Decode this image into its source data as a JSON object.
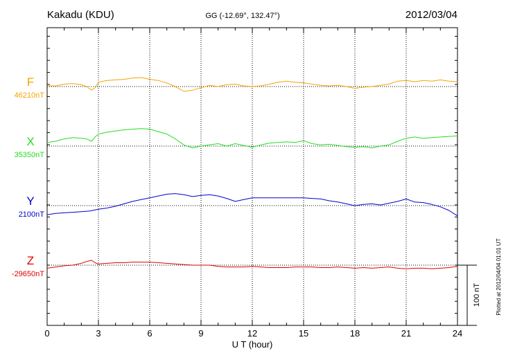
{
  "header": {
    "station": "Kakadu (KDU)",
    "coords": "GG (-12.69°, 132.47°)",
    "date": "2012/03/04"
  },
  "footer_note": "Plotted at 2012/04/04 01:01 UT",
  "chart_data": {
    "type": "line",
    "xlabel": "U T (hour)",
    "xlim": [
      0,
      24
    ],
    "x_ticks": [
      0,
      3,
      6,
      9,
      12,
      15,
      18,
      21,
      24
    ],
    "x_tick_labels": [
      "0",
      "3",
      "6",
      "9",
      "12",
      "15",
      "18",
      "21",
      "24"
    ],
    "y_unit": "nT",
    "scale_bar": {
      "label": "100 nT",
      "value": 100
    },
    "grid": true,
    "series": [
      {
        "name": "F",
        "baseline_label": "46210nT",
        "color": "#f5a300",
        "x": [
          0,
          0.5,
          1,
          1.5,
          2,
          2.3,
          2.6,
          2.8,
          3,
          3.5,
          4,
          4.5,
          5,
          5.5,
          6,
          6.5,
          7,
          7.5,
          8,
          8.5,
          9,
          9.5,
          10,
          10.5,
          11,
          11.5,
          12,
          12.5,
          13,
          13.5,
          14,
          14.5,
          15,
          15.5,
          16,
          16.5,
          17,
          17.5,
          18,
          18.5,
          19,
          19.5,
          20,
          20.5,
          21,
          21.5,
          22,
          22.5,
          23,
          23.5,
          24
        ],
        "y": [
          1,
          1,
          4,
          5,
          3,
          0,
          -6,
          -2,
          7,
          10,
          11,
          12,
          14,
          15,
          12,
          10,
          6,
          0,
          -8,
          -6,
          -2,
          2,
          0,
          3,
          4,
          1,
          0,
          1,
          4,
          7,
          9,
          7,
          6,
          4,
          2,
          1,
          2,
          0,
          -3,
          -1,
          0,
          2,
          4,
          9,
          10,
          8,
          10,
          9,
          11,
          9,
          8
        ]
      },
      {
        "name": "X",
        "baseline_label": "35350nT",
        "color": "#22dd22",
        "x": [
          0,
          0.5,
          1,
          1.5,
          2,
          2.3,
          2.6,
          2.8,
          3,
          3.5,
          4,
          4.5,
          5,
          5.5,
          6,
          6.5,
          7,
          7.5,
          8,
          8.5,
          9,
          9.5,
          10,
          10.5,
          11,
          11.5,
          12,
          12.5,
          13,
          13.5,
          14,
          14.5,
          15,
          15.5,
          16,
          16.5,
          17,
          17.5,
          18,
          18.5,
          19,
          19.5,
          20,
          20.5,
          21,
          21.5,
          22,
          22.5,
          23,
          23.5,
          24
        ],
        "y": [
          6,
          8,
          12,
          14,
          13,
          12,
          8,
          15,
          20,
          23,
          25,
          27,
          28,
          29,
          28,
          24,
          20,
          12,
          2,
          -3,
          0,
          2,
          4,
          0,
          4,
          1,
          -2,
          2,
          5,
          6,
          7,
          6,
          9,
          4,
          2,
          3,
          1,
          -1,
          -2,
          -1,
          -3,
          0,
          2,
          8,
          13,
          15,
          13,
          14,
          15,
          16,
          17
        ]
      },
      {
        "name": "Y",
        "baseline_label": "2100nT",
        "color": "#0000cc",
        "x": [
          0,
          0.5,
          1,
          1.5,
          2,
          2.5,
          3,
          3.5,
          4,
          4.5,
          5,
          5.5,
          6,
          6.5,
          7,
          7.5,
          8,
          8.5,
          9,
          9.5,
          10,
          10.5,
          11,
          11.5,
          12,
          12.5,
          13,
          13.5,
          14,
          14.5,
          15,
          15.5,
          16,
          16.5,
          17,
          17.5,
          18,
          18.5,
          19,
          19.5,
          20,
          20.5,
          21,
          21.5,
          22,
          22.5,
          23,
          23.5,
          24
        ],
        "y": [
          -15,
          -13,
          -12,
          -11,
          -10,
          -9,
          -6,
          -4,
          -1,
          3,
          7,
          10,
          13,
          16,
          19,
          20,
          18,
          15,
          17,
          18,
          16,
          12,
          7,
          10,
          13,
          13,
          13,
          13,
          13,
          13,
          13,
          12,
          11,
          8,
          6,
          3,
          0,
          2,
          3,
          1,
          4,
          7,
          11,
          6,
          5,
          2,
          -2,
          -8,
          -17
        ]
      },
      {
        "name": "Z",
        "baseline_label": "-29650nT",
        "color": "#dd0000",
        "x": [
          0,
          0.5,
          1,
          1.5,
          2,
          2.3,
          2.6,
          2.8,
          3,
          3.5,
          4,
          4.5,
          5,
          5.5,
          6,
          6.5,
          7,
          7.5,
          8,
          8.5,
          9,
          9.5,
          10,
          10.5,
          11,
          11.5,
          12,
          12.5,
          13,
          13.5,
          14,
          14.5,
          15,
          15.5,
          16,
          16.5,
          17,
          17.5,
          18,
          18.5,
          19,
          19.5,
          20,
          20.5,
          21,
          21.5,
          22,
          22.5,
          23,
          23.5,
          24
        ],
        "y": [
          -5,
          -3,
          -1,
          0,
          3,
          6,
          8,
          4,
          2,
          3,
          4,
          4,
          5,
          5,
          5,
          4,
          3,
          2,
          1,
          0,
          0,
          0,
          -2,
          -3,
          -3,
          -3,
          -2,
          -3,
          -4,
          -4,
          -4,
          -3,
          -3,
          -3,
          -4,
          -4,
          -3,
          -4,
          -5,
          -4,
          -5,
          -4,
          -3,
          -5,
          -6,
          -5,
          -5,
          -6,
          -5,
          -4,
          -2
        ]
      }
    ]
  }
}
